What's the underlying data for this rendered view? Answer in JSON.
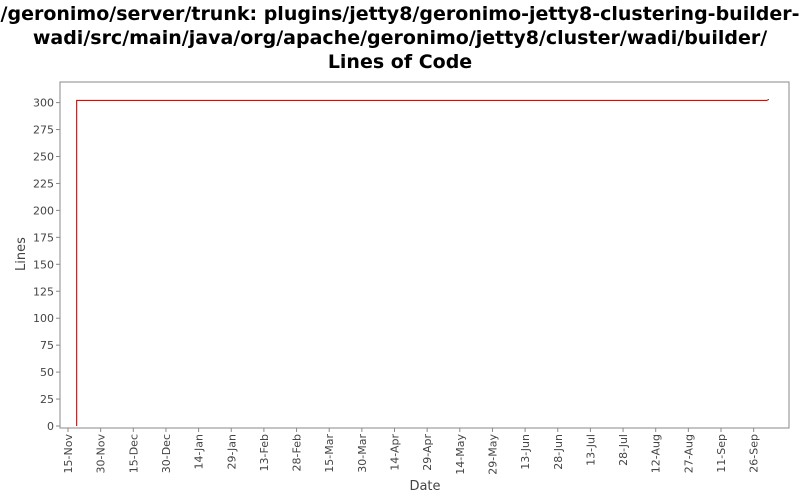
{
  "chart_data": {
    "type": "line",
    "title_lines": [
      "/geronimo/server/trunk: plugins/jetty8/geronimo-jetty8-clustering-builder-",
      "wadi/src/main/java/org/apache/geronimo/jetty8/cluster/wadi/builder/",
      "Lines of Code"
    ],
    "xlabel": "Date",
    "ylabel": "Lines",
    "ylim": [
      0,
      310
    ],
    "yticks": [
      0,
      25,
      50,
      75,
      100,
      125,
      150,
      175,
      200,
      225,
      250,
      275,
      300
    ],
    "xticks": [
      "15-Nov",
      "30-Nov",
      "15-Dec",
      "30-Dec",
      "14-Jan",
      "29-Jan",
      "13-Feb",
      "28-Feb",
      "15-Mar",
      "30-Mar",
      "14-Apr",
      "29-Apr",
      "14-May",
      "29-May",
      "13-Jun",
      "28-Jun",
      "13-Jul",
      "28-Jul",
      "12-Aug",
      "27-Aug",
      "11-Sep",
      "26-Sep"
    ],
    "grid": false,
    "series": [
      {
        "color": "#990000",
        "x": [
          "2009-11-19",
          "2009-11-19",
          "2010-10-02",
          "2010-10-03"
        ],
        "y": [
          0,
          302,
          302,
          303
        ]
      }
    ]
  }
}
